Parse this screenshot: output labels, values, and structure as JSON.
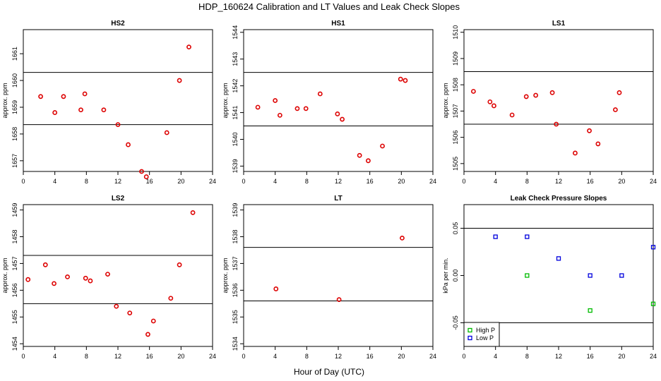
{
  "title": "HDP_160624  Calibration and LT Values and Leak Check Slopes",
  "xlabel": "Hour of Day (UTC)",
  "chart_data": [
    {
      "type": "scatter",
      "title": "HS2",
      "ylabel": "approx. ppm",
      "xlim": [
        0,
        24
      ],
      "xticks": [
        0,
        4,
        8,
        12,
        16,
        20,
        24
      ],
      "ylim": [
        1656.6,
        1661.9
      ],
      "yticks": [
        1657,
        1658,
        1659,
        1660,
        1661
      ],
      "hlines": [
        1660.3,
        1658.35
      ],
      "series": [
        {
          "name": "HS2",
          "color": "#dd0000",
          "x": [
            2.2,
            4.0,
            5.1,
            7.3,
            7.8,
            10.2,
            12.0,
            13.3,
            15.0,
            15.6,
            18.2,
            19.8,
            21.0
          ],
          "y": [
            1659.4,
            1658.8,
            1659.4,
            1658.9,
            1659.5,
            1658.9,
            1658.35,
            1657.6,
            1656.6,
            1656.4,
            1658.05,
            1660.0,
            1661.25
          ]
        }
      ]
    },
    {
      "type": "scatter",
      "title": "HS1",
      "ylabel": "approx. ppm",
      "xlim": [
        0,
        24
      ],
      "xticks": [
        0,
        4,
        8,
        12,
        16,
        20,
        24
      ],
      "ylim": [
        1538.8,
        1544.1
      ],
      "yticks": [
        1539,
        1540,
        1541,
        1542,
        1543,
        1544
      ],
      "hlines": [
        1542.5,
        1540.5
      ],
      "series": [
        {
          "name": "HS1",
          "color": "#dd0000",
          "x": [
            1.8,
            4.0,
            4.6,
            6.8,
            7.9,
            9.7,
            11.9,
            12.5,
            14.7,
            15.8,
            17.6,
            19.9,
            20.5
          ],
          "y": [
            1541.2,
            1541.45,
            1540.9,
            1541.15,
            1541.15,
            1541.7,
            1540.95,
            1540.75,
            1539.4,
            1539.2,
            1539.75,
            1542.25,
            1542.2
          ]
        }
      ]
    },
    {
      "type": "scatter",
      "title": "LS1",
      "ylabel": "approx. ppm",
      "xlim": [
        0,
        24
      ],
      "xticks": [
        0,
        4,
        8,
        12,
        16,
        20,
        24
      ],
      "ylim": [
        1504.7,
        1510.1
      ],
      "yticks": [
        1505,
        1506,
        1507,
        1508,
        1509,
        1510
      ],
      "hlines": [
        1508.5,
        1506.5
      ],
      "series": [
        {
          "name": "LS1",
          "color": "#dd0000",
          "x": [
            1.2,
            3.3,
            3.8,
            6.1,
            7.9,
            9.1,
            11.2,
            11.7,
            14.1,
            15.9,
            17.0,
            19.2,
            19.7
          ],
          "y": [
            1507.75,
            1507.35,
            1507.2,
            1506.85,
            1507.55,
            1507.6,
            1507.7,
            1506.5,
            1505.4,
            1506.25,
            1505.75,
            1507.05,
            1507.7
          ]
        }
      ]
    },
    {
      "type": "scatter",
      "title": "LS2",
      "ylabel": "approx. ppm",
      "xlim": [
        0,
        24
      ],
      "xticks": [
        0,
        4,
        8,
        12,
        16,
        20,
        24
      ],
      "ylim": [
        1453.9,
        1459.2
      ],
      "yticks": [
        1454,
        1455,
        1456,
        1457,
        1458,
        1459
      ],
      "hlines": [
        1457.3,
        1455.5
      ],
      "series": [
        {
          "name": "LS2",
          "color": "#dd0000",
          "x": [
            0.6,
            2.8,
            3.9,
            5.6,
            7.9,
            8.5,
            10.7,
            11.8,
            13.5,
            15.8,
            16.5,
            18.7,
            19.8,
            21.5
          ],
          "y": [
            1456.4,
            1456.95,
            1456.25,
            1456.5,
            1456.45,
            1456.35,
            1456.6,
            1455.4,
            1455.15,
            1454.35,
            1454.85,
            1455.7,
            1456.95,
            1458.9
          ]
        }
      ]
    },
    {
      "type": "scatter",
      "title": "LT",
      "ylabel": "approx. ppm",
      "xlim": [
        0,
        24
      ],
      "xticks": [
        0,
        4,
        8,
        12,
        16,
        20,
        24
      ],
      "ylim": [
        1533.9,
        1539.2
      ],
      "yticks": [
        1534,
        1535,
        1536,
        1537,
        1538,
        1539
      ],
      "hlines": [
        1537.6,
        1535.6
      ],
      "series": [
        {
          "name": "LT",
          "color": "#dd0000",
          "x": [
            4.1,
            12.1,
            20.1
          ],
          "y": [
            1536.05,
            1535.65,
            1537.95
          ]
        }
      ]
    },
    {
      "type": "scatter",
      "title": "Leak Check Pressure Slopes",
      "ylabel": "kPa per min.",
      "xlim": [
        0,
        24
      ],
      "xticks": [
        0,
        4,
        8,
        12,
        16,
        20,
        24
      ],
      "ylim": [
        -0.075,
        0.075
      ],
      "yticks": [
        -0.05,
        0,
        0.05
      ],
      "ytick_labels": [
        "-0.05",
        "0.00",
        "0.05"
      ],
      "hlines": [
        0.05,
        -0.05
      ],
      "legend": {
        "position": "bottom-left",
        "entries": [
          {
            "label": "High P",
            "color": "#00bb00"
          },
          {
            "label": "Low P",
            "color": "#0000dd"
          }
        ]
      },
      "series": [
        {
          "name": "High P",
          "color": "#00bb00",
          "x": [
            8,
            16,
            24
          ],
          "y": [
            0.0,
            -0.037,
            -0.03
          ]
        },
        {
          "name": "Low P",
          "color": "#0000dd",
          "x": [
            4,
            8,
            12,
            16,
            20,
            24
          ],
          "y": [
            0.041,
            0.041,
            0.018,
            0.0,
            0.0,
            0.03
          ]
        }
      ]
    }
  ]
}
